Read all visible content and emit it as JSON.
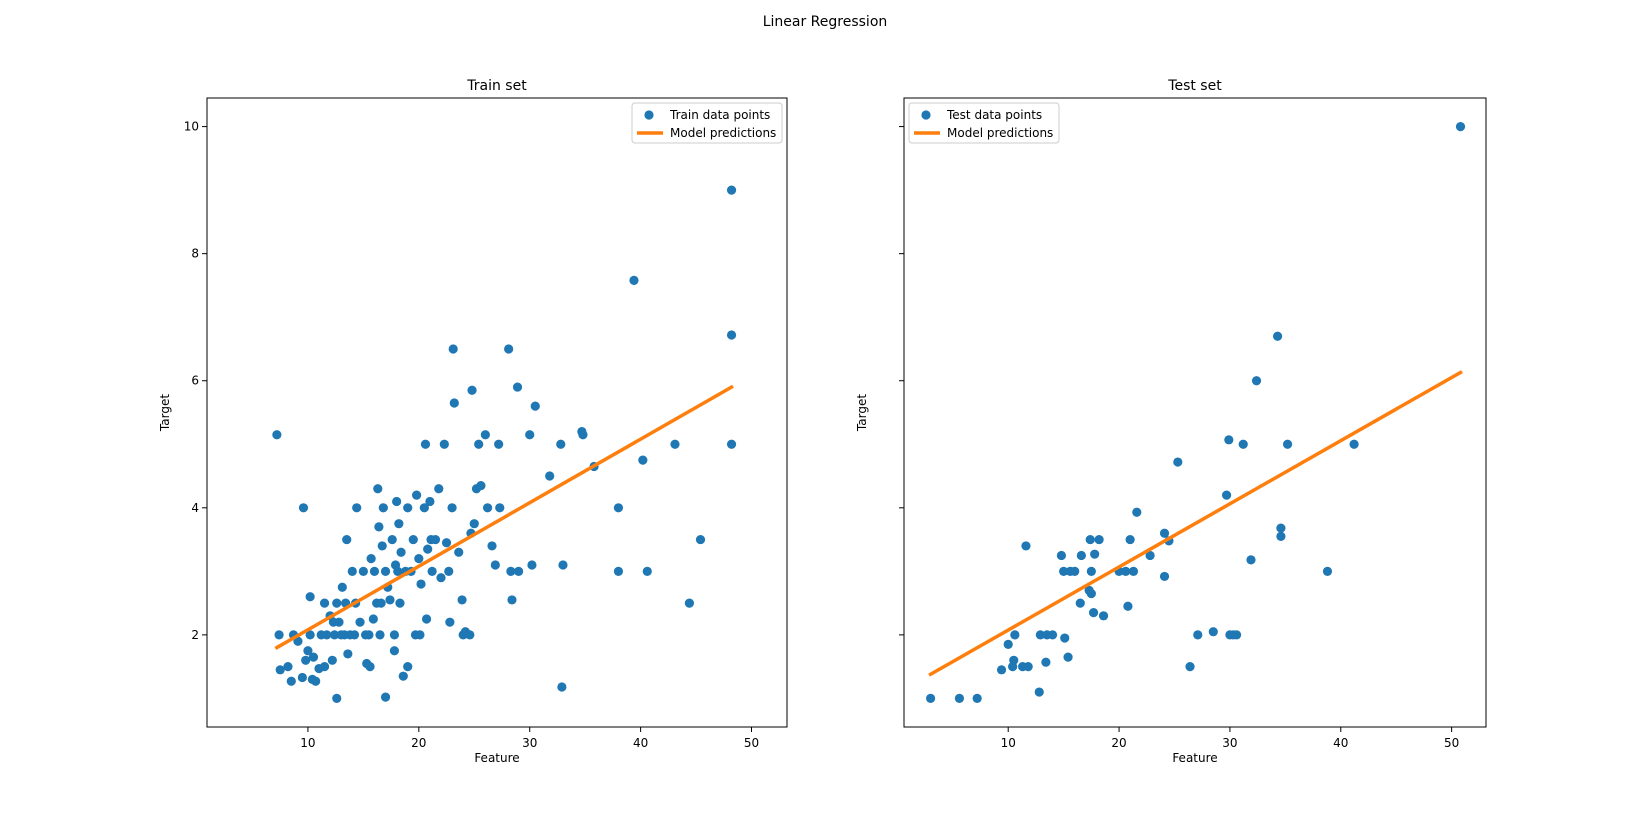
{
  "figure": {
    "suptitle": "Linear Regression"
  },
  "colors": {
    "points": "#1f77b4",
    "line": "#ff7f0e"
  },
  "chart_data": [
    {
      "type": "scatter",
      "title": "Train set",
      "xlabel": "Feature",
      "ylabel": "Target",
      "xlim": [
        0.9,
        53.2
      ],
      "ylim": [
        0.55,
        10.45
      ],
      "xticks": [
        10,
        20,
        30,
        40,
        50
      ],
      "yticks": [
        2,
        4,
        6,
        8,
        10
      ],
      "show_y_tick_labels": true,
      "grid": false,
      "legend_position": "top-right",
      "legend": [
        "Train data points",
        "Model predictions"
      ],
      "series": [
        {
          "name": "Train data points",
          "kind": "scatter",
          "points": [
            [
              7.2,
              5.15
            ],
            [
              7.4,
              2.0
            ],
            [
              7.5,
              1.45
            ],
            [
              8.2,
              1.5
            ],
            [
              8.5,
              1.27
            ],
            [
              8.7,
              2.0
            ],
            [
              9.1,
              1.9
            ],
            [
              9.5,
              1.33
            ],
            [
              9.6,
              4.0
            ],
            [
              9.8,
              1.6
            ],
            [
              10.0,
              1.75
            ],
            [
              10.2,
              2.6
            ],
            [
              10.4,
              1.3
            ],
            [
              10.5,
              1.65
            ],
            [
              10.2,
              2.0
            ],
            [
              10.7,
              1.27
            ],
            [
              11.0,
              1.47
            ],
            [
              11.2,
              2.0
            ],
            [
              11.5,
              1.5
            ],
            [
              11.5,
              2.5
            ],
            [
              11.7,
              2.0
            ],
            [
              12.0,
              2.3
            ],
            [
              12.2,
              1.6
            ],
            [
              12.3,
              2.2
            ],
            [
              12.4,
              2.0
            ],
            [
              12.6,
              1.0
            ],
            [
              12.6,
              2.5
            ],
            [
              12.8,
              2.2
            ],
            [
              13.0,
              2.0
            ],
            [
              13.1,
              2.75
            ],
            [
              13.3,
              2.0
            ],
            [
              13.4,
              2.5
            ],
            [
              13.5,
              3.5
            ],
            [
              13.6,
              1.7
            ],
            [
              13.8,
              2.0
            ],
            [
              14.0,
              3.0
            ],
            [
              14.2,
              2.0
            ],
            [
              14.3,
              2.5
            ],
            [
              14.4,
              4.0
            ],
            [
              14.7,
              2.2
            ],
            [
              15.0,
              3.0
            ],
            [
              15.2,
              2.0
            ],
            [
              15.3,
              1.55
            ],
            [
              15.5,
              2.0
            ],
            [
              15.6,
              1.5
            ],
            [
              15.7,
              3.2
            ],
            [
              15.9,
              2.25
            ],
            [
              16.0,
              3.0
            ],
            [
              16.2,
              2.5
            ],
            [
              16.3,
              4.3
            ],
            [
              16.4,
              3.7
            ],
            [
              16.5,
              2.0
            ],
            [
              16.6,
              2.5
            ],
            [
              16.7,
              3.4
            ],
            [
              16.8,
              4.0
            ],
            [
              17.0,
              3.0
            ],
            [
              17.0,
              1.02
            ],
            [
              17.2,
              2.75
            ],
            [
              17.4,
              2.55
            ],
            [
              17.6,
              3.5
            ],
            [
              17.8,
              2.0
            ],
            [
              17.8,
              1.75
            ],
            [
              17.9,
              3.1
            ],
            [
              18.0,
              4.1
            ],
            [
              18.1,
              3.0
            ],
            [
              18.2,
              3.75
            ],
            [
              18.3,
              2.5
            ],
            [
              18.4,
              3.3
            ],
            [
              18.6,
              1.35
            ],
            [
              18.8,
              3.0
            ],
            [
              19.0,
              1.5
            ],
            [
              19.0,
              4.0
            ],
            [
              19.3,
              3.0
            ],
            [
              19.5,
              3.5
            ],
            [
              19.7,
              2.0
            ],
            [
              19.8,
              4.2
            ],
            [
              20.0,
              3.2
            ],
            [
              20.1,
              2.0
            ],
            [
              20.2,
              2.8
            ],
            [
              20.5,
              4.0
            ],
            [
              20.6,
              5.0
            ],
            [
              20.7,
              2.25
            ],
            [
              20.8,
              3.35
            ],
            [
              21.0,
              4.1
            ],
            [
              21.1,
              3.5
            ],
            [
              21.2,
              3.0
            ],
            [
              21.5,
              3.5
            ],
            [
              21.8,
              4.3
            ],
            [
              22.0,
              2.9
            ],
            [
              22.3,
              5.0
            ],
            [
              22.5,
              3.45
            ],
            [
              22.7,
              3.0
            ],
            [
              22.8,
              2.2
            ],
            [
              23.0,
              4.0
            ],
            [
              23.1,
              6.5
            ],
            [
              23.2,
              5.65
            ],
            [
              23.6,
              3.3
            ],
            [
              23.9,
              2.55
            ],
            [
              24.0,
              2.0
            ],
            [
              24.2,
              2.05
            ],
            [
              24.6,
              2.0
            ],
            [
              24.7,
              3.6
            ],
            [
              24.8,
              5.85
            ],
            [
              25.0,
              3.75
            ],
            [
              25.2,
              4.3
            ],
            [
              25.4,
              5.0
            ],
            [
              25.6,
              4.35
            ],
            [
              26.0,
              5.15
            ],
            [
              26.2,
              4.0
            ],
            [
              26.6,
              3.4
            ],
            [
              26.9,
              3.1
            ],
            [
              27.2,
              5.0
            ],
            [
              27.3,
              4.0
            ],
            [
              28.1,
              6.5
            ],
            [
              28.3,
              3.0
            ],
            [
              28.4,
              2.55
            ],
            [
              28.9,
              5.9
            ],
            [
              29.0,
              3.0
            ],
            [
              30.0,
              5.15
            ],
            [
              30.2,
              3.1
            ],
            [
              30.5,
              5.6
            ],
            [
              31.8,
              4.5
            ],
            [
              32.8,
              5.0
            ],
            [
              32.9,
              1.18
            ],
            [
              33.0,
              3.1
            ],
            [
              34.7,
              5.2
            ],
            [
              34.8,
              5.15
            ],
            [
              35.8,
              4.65
            ],
            [
              38.0,
              3.0
            ],
            [
              38.0,
              4.0
            ],
            [
              39.4,
              7.58
            ],
            [
              40.2,
              4.75
            ],
            [
              40.6,
              3.0
            ],
            [
              43.1,
              5.0
            ],
            [
              44.4,
              2.5
            ],
            [
              45.4,
              3.5
            ],
            [
              48.2,
              9.0
            ],
            [
              48.2,
              6.72
            ],
            [
              48.2,
              5.0
            ]
          ]
        },
        {
          "name": "Model predictions",
          "kind": "line",
          "points": [
            [
              7.2,
              1.8
            ],
            [
              48.2,
              5.9
            ]
          ]
        }
      ]
    },
    {
      "type": "scatter",
      "title": "Test set",
      "xlabel": "Feature",
      "ylabel": "Target",
      "xlim": [
        0.6,
        53.1
      ],
      "ylim": [
        0.55,
        10.45
      ],
      "xticks": [
        10,
        20,
        30,
        40,
        50
      ],
      "yticks": [
        2,
        4,
        6,
        8,
        10
      ],
      "show_y_tick_labels": false,
      "grid": false,
      "legend_position": "top-left",
      "legend": [
        "Test data points",
        "Model predictions"
      ],
      "series": [
        {
          "name": "Test data points",
          "kind": "scatter",
          "points": [
            [
              3.0,
              1.0
            ],
            [
              5.6,
              1.0
            ],
            [
              7.2,
              1.0
            ],
            [
              9.4,
              1.45
            ],
            [
              10.0,
              1.85
            ],
            [
              10.4,
              1.5
            ],
            [
              10.5,
              1.6
            ],
            [
              10.6,
              2.0
            ],
            [
              11.3,
              1.5
            ],
            [
              11.6,
              3.4
            ],
            [
              11.8,
              1.5
            ],
            [
              12.8,
              1.1
            ],
            [
              12.9,
              2.0
            ],
            [
              13.4,
              1.57
            ],
            [
              13.5,
              2.0
            ],
            [
              14.0,
              2.0
            ],
            [
              14.8,
              3.25
            ],
            [
              15.0,
              3.0
            ],
            [
              15.1,
              1.95
            ],
            [
              15.4,
              1.65
            ],
            [
              15.6,
              3.0
            ],
            [
              16.0,
              3.0
            ],
            [
              16.5,
              2.5
            ],
            [
              16.6,
              3.25
            ],
            [
              17.3,
              2.7
            ],
            [
              17.4,
              3.5
            ],
            [
              17.5,
              2.65
            ],
            [
              17.5,
              3.0
            ],
            [
              17.7,
              2.35
            ],
            [
              17.8,
              3.27
            ],
            [
              18.2,
              3.5
            ],
            [
              18.6,
              2.3
            ],
            [
              20.0,
              3.0
            ],
            [
              20.6,
              3.0
            ],
            [
              20.8,
              2.45
            ],
            [
              21.0,
              3.5
            ],
            [
              21.3,
              3.0
            ],
            [
              21.6,
              3.93
            ],
            [
              22.8,
              3.25
            ],
            [
              24.1,
              3.6
            ],
            [
              24.1,
              2.92
            ],
            [
              24.5,
              3.48
            ],
            [
              25.3,
              4.72
            ],
            [
              26.4,
              1.5
            ],
            [
              27.1,
              2.0
            ],
            [
              28.5,
              2.05
            ],
            [
              29.7,
              4.2
            ],
            [
              29.9,
              5.07
            ],
            [
              30.0,
              2.0
            ],
            [
              30.3,
              2.0
            ],
            [
              30.6,
              2.0
            ],
            [
              31.2,
              5.0
            ],
            [
              31.9,
              3.18
            ],
            [
              32.4,
              6.0
            ],
            [
              34.3,
              6.7
            ],
            [
              34.6,
              3.68
            ],
            [
              34.6,
              3.55
            ],
            [
              35.2,
              5.0
            ],
            [
              38.8,
              3.0
            ],
            [
              41.2,
              5.0
            ],
            [
              50.8,
              10.0
            ]
          ]
        },
        {
          "name": "Model predictions",
          "kind": "line",
          "points": [
            [
              3.0,
              1.38
            ],
            [
              50.8,
              6.13
            ]
          ]
        }
      ]
    }
  ]
}
